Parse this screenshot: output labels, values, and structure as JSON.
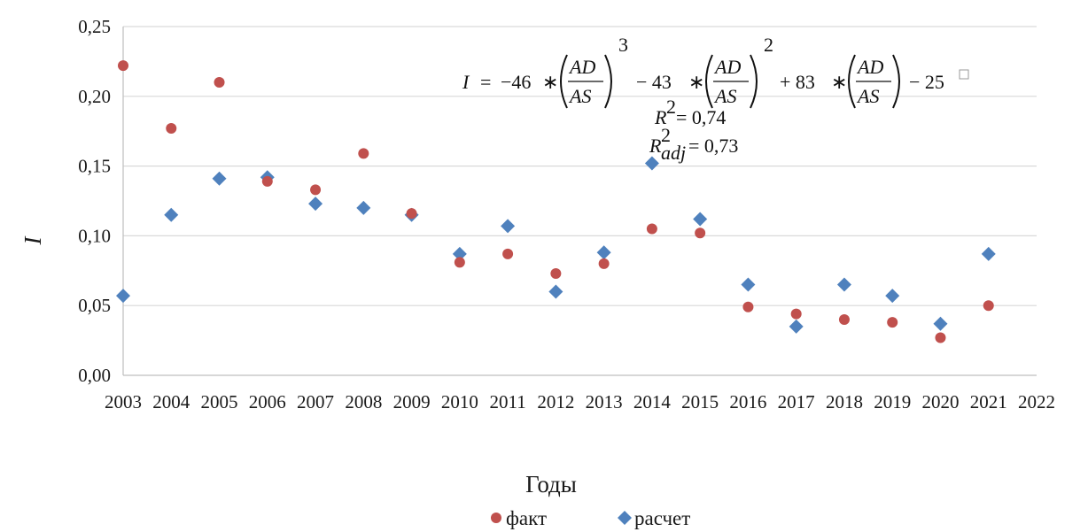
{
  "chart_data": {
    "type": "scatter",
    "title": "",
    "xlabel": "Годы",
    "ylabel": "I",
    "xlim": [
      2003,
      2022
    ],
    "ylim": [
      0,
      0.25
    ],
    "x_ticks": [
      "2003",
      "2004",
      "2005",
      "2006",
      "2007",
      "2008",
      "2009",
      "2010",
      "2011",
      "2012",
      "2013",
      "2014",
      "2015",
      "2016",
      "2017",
      "2018",
      "2019",
      "2020",
      "2021",
      "2022"
    ],
    "y_ticks": [
      "0,00",
      "0,05",
      "0,10",
      "0,15",
      "0,20",
      "0,25"
    ],
    "grid": "horizontal",
    "legend_position": "bottom",
    "series": [
      {
        "name": "факт",
        "marker": "circle",
        "color": "#C0504D",
        "x": [
          2003,
          2004,
          2005,
          2006,
          2007,
          2008,
          2009,
          2010,
          2011,
          2012,
          2013,
          2014,
          2015,
          2016,
          2017,
          2018,
          2019,
          2020,
          2021
        ],
        "y": [
          0.222,
          0.177,
          0.21,
          0.139,
          0.133,
          0.159,
          0.116,
          0.081,
          0.087,
          0.073,
          0.08,
          0.105,
          0.102,
          0.049,
          0.044,
          0.04,
          0.038,
          0.027,
          0.05
        ]
      },
      {
        "name": "расчет",
        "marker": "diamond",
        "color": "#4F81BD",
        "x": [
          2003,
          2004,
          2005,
          2006,
          2007,
          2008,
          2009,
          2010,
          2011,
          2012,
          2013,
          2014,
          2015,
          2016,
          2017,
          2018,
          2019,
          2020,
          2021
        ],
        "y": [
          0.057,
          0.115,
          0.141,
          0.142,
          0.123,
          0.12,
          0.115,
          0.087,
          0.107,
          0.06,
          0.088,
          0.152,
          0.112,
          0.065,
          0.035,
          0.065,
          0.057,
          0.037,
          0.087
        ]
      }
    ],
    "annotation": {
      "lhs": "I",
      "eq": "=",
      "c1": "−46",
      "c2": "− 43",
      "c3": "+ 83",
      "c4": "− 25",
      "op": "∗",
      "num": "AD",
      "den": "AS",
      "exp3": "3",
      "exp2": "2",
      "r2_label": "R",
      "r2_sup": "2",
      "r2_value": "=  0,74",
      "r2adj_sub": "adj",
      "r2adj_value": "= 0,73"
    }
  }
}
